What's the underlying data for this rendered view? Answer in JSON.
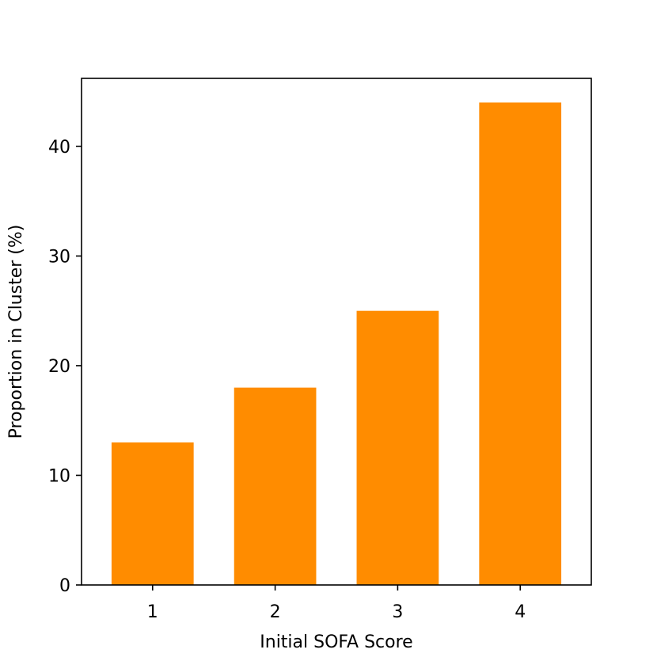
{
  "chart_data": {
    "type": "bar",
    "title": "",
    "xlabel": "Initial SOFA Score",
    "ylabel": "Proportion in Cluster (%)",
    "categories": [
      "1",
      "2",
      "3",
      "4"
    ],
    "values": [
      13,
      18,
      25,
      44
    ],
    "ylim": [
      0,
      46.2
    ],
    "yticks": [
      0,
      10,
      20,
      30,
      40
    ],
    "bar_color": "#ff8c00",
    "grid": false,
    "legend": "none"
  }
}
